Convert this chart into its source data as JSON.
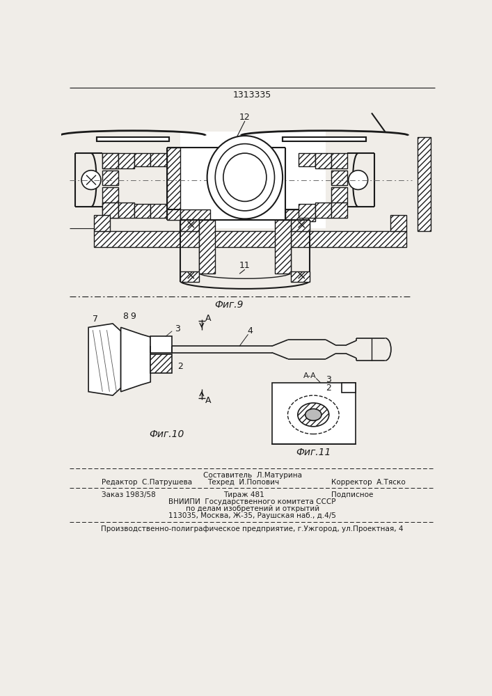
{
  "patent_number": "1313335",
  "fig9_label": "Фиг.9",
  "fig10_label": "Фиг.10",
  "fig11_label": "Фиг.11",
  "bg_color": "#f0ede8",
  "line_color": "#1a1a1a",
  "footer_line1": "Составитель  Л.Матурина",
  "footer_line2_left": "Редактор  С.Патрушева",
  "footer_line2_mid": "Техред  И.Попович",
  "footer_line2_right": "Корректор  А.Тяско",
  "footer_line3_left": "Заказ 1983/58",
  "footer_line3_mid": "Тираж 481",
  "footer_line3_right": "Подписное",
  "footer_line4": "ВНИИПИ  Государственного комитета СССР",
  "footer_line5": "по делам изобретений и открытий",
  "footer_line6": "113035, Москва, Ж-35, Раушская наб., д.4/5",
  "footer_line7": "Производственно-полиграфическое предприятие, г.Ужгород, ул.Проектная, 4"
}
